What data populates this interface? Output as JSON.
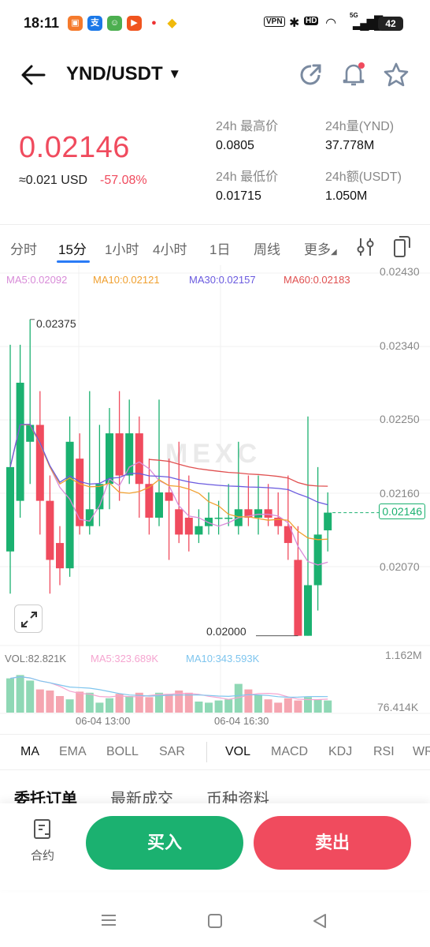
{
  "status": {
    "time": "18:11",
    "icons": [
      "vpn-icon",
      "bluetooth-icon",
      "hd-icon",
      "wifi-icon",
      "signal-icon",
      "battery-icon"
    ],
    "vpn": "VPN",
    "hd": "HD",
    "net": "5G",
    "battery": "42"
  },
  "header": {
    "pair": "YND/USDT",
    "caret": "▼"
  },
  "price": {
    "last": "0.02146",
    "usd": "≈0.021 USD",
    "change": "-57.08%"
  },
  "stats": {
    "high_label": "24h 最高价",
    "high": "0.0805",
    "low_label": "24h 最低价",
    "low": "0.01715",
    "vol_label": "24h量(YND)",
    "vol": "37.778M",
    "amt_label": "24h额(USDT)",
    "amt": "1.050M"
  },
  "timeframes": [
    "分时",
    "15分",
    "1小时",
    "4小时",
    "1日",
    "周线",
    "更多"
  ],
  "active_timeframe": "15分",
  "ma": {
    "ma5": "MA5:0.02092",
    "ma10": "MA10:0.02121",
    "ma30": "MA30:0.02157",
    "ma60": "MA60:0.02183"
  },
  "colors": {
    "up": "#1bb170",
    "down": "#f04b5e",
    "ma5": "#d88bd8",
    "ma10": "#f0a030",
    "ma30": "#6a5adf",
    "ma60": "#e05050",
    "accent": "#2a7bf6"
  },
  "axis": {
    "prices": [
      "0.02430",
      "0.02340",
      "0.02250",
      "0.02160",
      "0.02070"
    ],
    "current_tag": "0.02146",
    "high_mark": "0.02375",
    "low_mark": "0.02000",
    "vol_top": "1.162M",
    "vol_bottom": "76.414K",
    "times": [
      "06-04 13:00",
      "06-04 16:30"
    ]
  },
  "volume": {
    "vol": "VOL:82.821K",
    "ma5": "MA5:323.689K",
    "ma10": "MA10:343.593K"
  },
  "watermark": "MEXC",
  "chart_data": {
    "type": "candlestick",
    "ylim": [
      0.01995,
      0.0243
    ],
    "candles": [
      {
        "o": 0.021,
        "c": 0.022,
        "h": 0.02345,
        "l": 0.0205
      },
      {
        "o": 0.0216,
        "c": 0.023,
        "h": 0.02345,
        "l": 0.0214
      },
      {
        "o": 0.0223,
        "c": 0.0225,
        "h": 0.02375,
        "l": 0.0218
      },
      {
        "o": 0.0225,
        "c": 0.0216,
        "h": 0.0229,
        "l": 0.0212
      },
      {
        "o": 0.0216,
        "c": 0.0209,
        "h": 0.0219,
        "l": 0.0205
      },
      {
        "o": 0.0211,
        "c": 0.0208,
        "h": 0.0213,
        "l": 0.0206
      },
      {
        "o": 0.0208,
        "c": 0.0223,
        "h": 0.0226,
        "l": 0.0207
      },
      {
        "o": 0.0221,
        "c": 0.0213,
        "h": 0.0224,
        "l": 0.0212
      },
      {
        "o": 0.0213,
        "c": 0.0215,
        "h": 0.0229,
        "l": 0.0212
      },
      {
        "o": 0.0215,
        "c": 0.0218,
        "h": 0.0225,
        "l": 0.0213
      },
      {
        "o": 0.0218,
        "c": 0.0224,
        "h": 0.0227,
        "l": 0.0215
      },
      {
        "o": 0.0224,
        "c": 0.0219,
        "h": 0.0229,
        "l": 0.0216
      },
      {
        "o": 0.0219,
        "c": 0.0224,
        "h": 0.0228,
        "l": 0.0218
      },
      {
        "o": 0.0224,
        "c": 0.0218,
        "h": 0.0226,
        "l": 0.0214
      },
      {
        "o": 0.0218,
        "c": 0.0214,
        "h": 0.0221,
        "l": 0.0212
      },
      {
        "o": 0.0214,
        "c": 0.0217,
        "h": 0.0228,
        "l": 0.0213
      },
      {
        "o": 0.0217,
        "c": 0.0216,
        "h": 0.0221,
        "l": 0.0209
      },
      {
        "o": 0.0215,
        "c": 0.0212,
        "h": 0.0223,
        "l": 0.0211
      },
      {
        "o": 0.0214,
        "c": 0.0212,
        "h": 0.0219,
        "l": 0.021
      },
      {
        "o": 0.0212,
        "c": 0.0213,
        "h": 0.0215,
        "l": 0.0211
      },
      {
        "o": 0.0213,
        "c": 0.0214,
        "h": 0.0217,
        "l": 0.0212
      },
      {
        "o": 0.0214,
        "c": 0.0214,
        "h": 0.0216,
        "l": 0.0212
      },
      {
        "o": 0.0214,
        "c": 0.0214,
        "h": 0.0218,
        "l": 0.0213
      },
      {
        "o": 0.0213,
        "c": 0.0215,
        "h": 0.0223,
        "l": 0.0212
      },
      {
        "o": 0.0215,
        "c": 0.0214,
        "h": 0.0219,
        "l": 0.0213
      },
      {
        "o": 0.0214,
        "c": 0.0215,
        "h": 0.0219,
        "l": 0.0212
      },
      {
        "o": 0.0215,
        "c": 0.0214,
        "h": 0.0218,
        "l": 0.0213
      },
      {
        "o": 0.0214,
        "c": 0.0213,
        "h": 0.0217,
        "l": 0.0212
      },
      {
        "o": 0.0213,
        "c": 0.0211,
        "h": 0.0219,
        "l": 0.0209
      },
      {
        "o": 0.0209,
        "c": 0.02,
        "h": 0.0213,
        "l": 0.02
      },
      {
        "o": 0.02,
        "c": 0.0206,
        "h": 0.0226,
        "l": 0.02
      },
      {
        "o": 0.0206,
        "c": 0.0212,
        "h": 0.022,
        "l": 0.0203
      },
      {
        "o": 0.02125,
        "c": 0.02146,
        "h": 0.0217,
        "l": 0.021
      }
    ],
    "volumes": [
      0.62,
      0.68,
      0.58,
      0.42,
      0.4,
      0.3,
      0.24,
      0.38,
      0.36,
      0.18,
      0.26,
      0.34,
      0.3,
      0.36,
      0.28,
      0.36,
      0.34,
      0.4,
      0.36,
      0.2,
      0.18,
      0.22,
      0.24,
      0.52,
      0.42,
      0.32,
      0.24,
      0.18,
      0.26,
      0.22,
      0.28,
      0.24,
      0.22
    ]
  },
  "indicators_main": [
    "MA",
    "EMA",
    "BOLL",
    "SAR"
  ],
  "indicators_sub": [
    "VOL",
    "MACD",
    "KDJ",
    "RSI",
    "WR"
  ],
  "tabs": [
    "委托订单",
    "最新成交",
    "币种资料"
  ],
  "bottom": {
    "contract": "合约",
    "buy": "买入",
    "sell": "卖出"
  }
}
